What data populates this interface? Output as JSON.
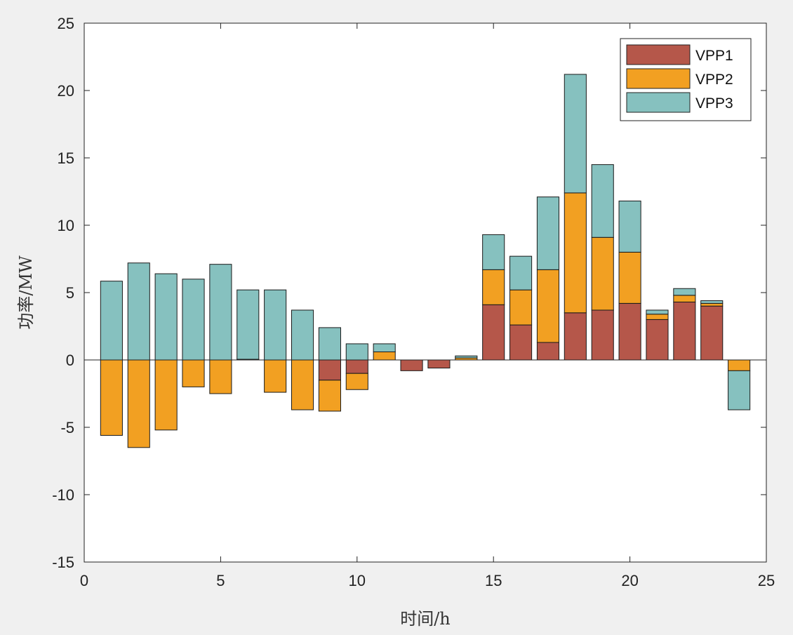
{
  "chart_data": {
    "type": "bar",
    "stacked": true,
    "title": "",
    "xlabel": "时间/h",
    "ylabel": "功率/MW",
    "xlim": [
      0,
      25
    ],
    "ylim": [
      -15,
      25
    ],
    "x_ticks": [
      0,
      5,
      10,
      15,
      20,
      25
    ],
    "y_ticks": [
      -15,
      -10,
      -5,
      0,
      5,
      10,
      15,
      20,
      25
    ],
    "grid": false,
    "legend_position": "top-right",
    "categories": [
      1,
      2,
      3,
      4,
      5,
      6,
      7,
      8,
      9,
      10,
      11,
      12,
      13,
      14,
      15,
      16,
      17,
      18,
      19,
      20,
      21,
      22,
      23,
      24
    ],
    "series": [
      {
        "name": "VPP1",
        "color": "#b5574a",
        "values": [
          0,
          0,
          0,
          0,
          0,
          0,
          0,
          0,
          -1.5,
          -1.0,
          0,
          -0.8,
          -0.6,
          0,
          4.1,
          2.6,
          1.3,
          3.5,
          3.7,
          4.2,
          3.0,
          4.3,
          4.0,
          0
        ]
      },
      {
        "name": "VPP2",
        "color": "#f2a022",
        "values": [
          -5.6,
          -6.5,
          -5.2,
          -2.0,
          -2.5,
          0.05,
          -2.4,
          -3.7,
          -2.3,
          -1.2,
          0.6,
          0,
          0,
          0.15,
          2.6,
          2.6,
          5.4,
          8.9,
          5.4,
          3.8,
          0.4,
          0.5,
          0.2,
          -0.8
        ]
      },
      {
        "name": "VPP3",
        "color": "#86c1bf",
        "values": [
          5.85,
          7.2,
          6.4,
          6.0,
          7.1,
          5.15,
          5.2,
          3.7,
          2.4,
          1.2,
          0.6,
          0,
          0,
          0.15,
          2.6,
          2.5,
          5.4,
          8.8,
          5.4,
          3.8,
          0.3,
          0.5,
          0.2,
          -2.9
        ]
      }
    ]
  },
  "colors": {
    "background": "#f0f0f0",
    "axes": "#ffffff",
    "edge": "#1a1a1a"
  }
}
